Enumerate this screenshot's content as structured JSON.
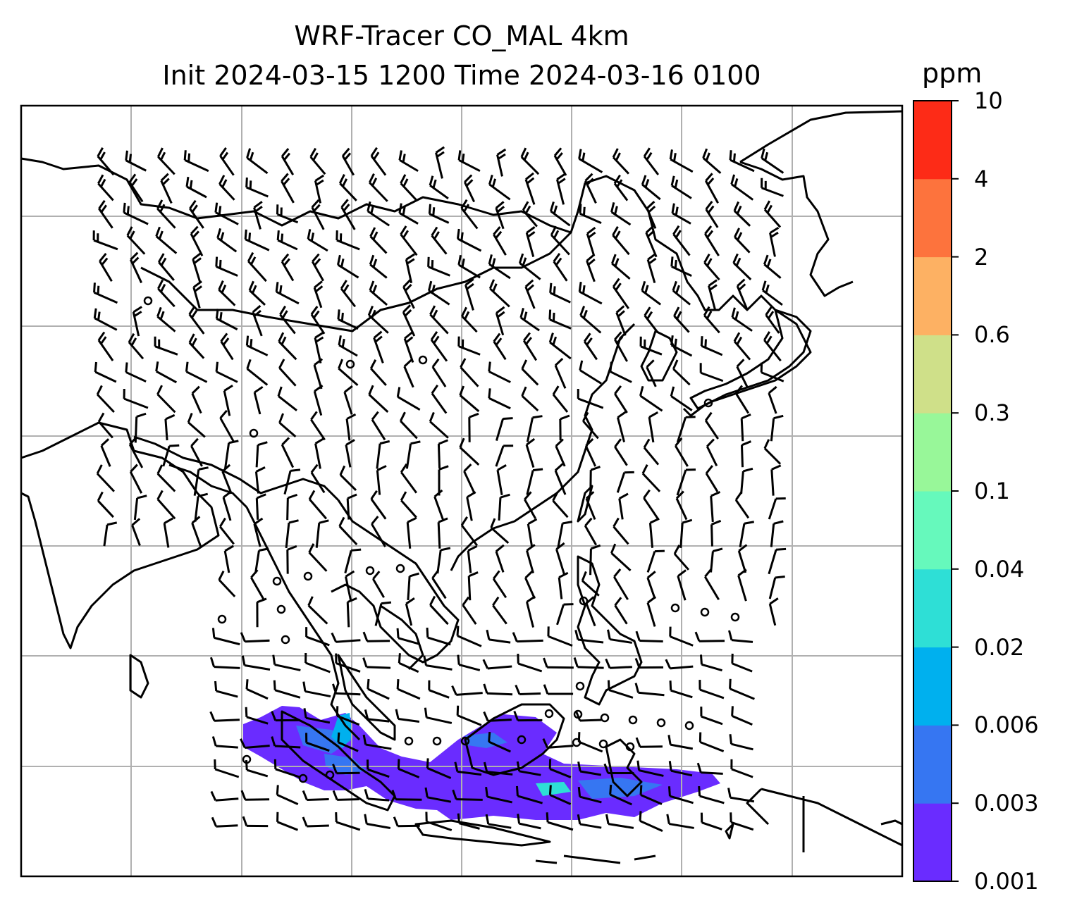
{
  "title": {
    "line1": "WRF-Tracer CO_MAL 4km",
    "line2": "Init 2024-03-15 1200 Time 2024-03-16 0100"
  },
  "colorbar": {
    "unit": "ppm",
    "levels": [
      "0.001",
      "0.003",
      "0.006",
      "0.02",
      "0.04",
      "0.1",
      "0.3",
      "0.6",
      "2",
      "4",
      "10"
    ],
    "colors": [
      "#6a2cff",
      "#3676f2",
      "#00b0ee",
      "#2edfd6",
      "#66f9bc",
      "#98f799",
      "#cfe089",
      "#fdb163",
      "#fd733d",
      "#fd2b17"
    ]
  },
  "map": {
    "region": "East & Southeast Asia",
    "layers": [
      "coastlines",
      "gridlines",
      "wind-barbs",
      "tracer-concentration"
    ],
    "grid": true
  }
}
